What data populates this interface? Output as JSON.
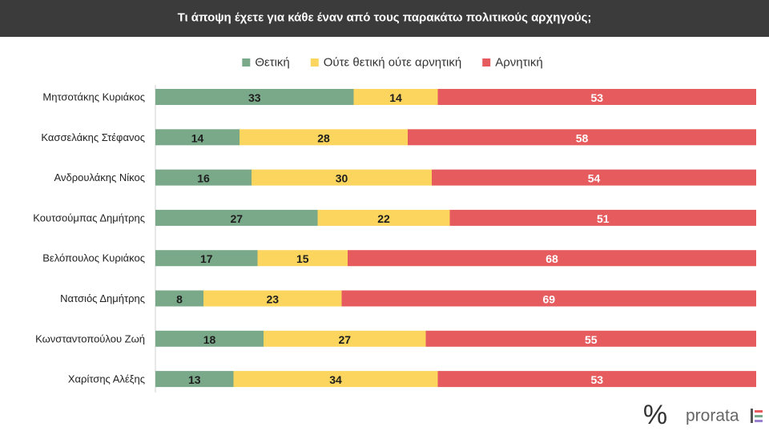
{
  "chart_data": {
    "type": "stacked-bar-horizontal",
    "title": "Τι άποψη έχετε για κάθε έναν από τους παρακάτω πολιτικούς αρχηγούς;",
    "categories": [
      "Μητσοτάκης Κυριάκος",
      "Κασσελάκης Στέφανος",
      "Ανδρουλάκης Νίκος",
      "Κουτσούμπας Δημήτρης",
      "Βελόπουλος Κυριάκος",
      "Νατσιός Δημήτρης",
      "Κωνσταντοπούλου Ζωή",
      "Χαρίτσης Αλέξης"
    ],
    "series": [
      {
        "name": "Θετική",
        "color": "#7aa98a",
        "label_color": "#1e1e1e",
        "values": [
          33,
          14,
          16,
          27,
          17,
          8,
          18,
          13
        ]
      },
      {
        "name": "Ούτε θετική ούτε αρνητική",
        "color": "#fbd55e",
        "label_color": "#1e1e1e",
        "values": [
          14,
          28,
          30,
          22,
          15,
          23,
          27,
          34
        ]
      },
      {
        "name": "Αρνητική",
        "color": "#e65c5e",
        "label_color": "#ffffff",
        "values": [
          53,
          58,
          54,
          51,
          68,
          69,
          55,
          53
        ]
      }
    ],
    "legend": "top",
    "logo_symbol": "%",
    "logo": "prorata"
  }
}
